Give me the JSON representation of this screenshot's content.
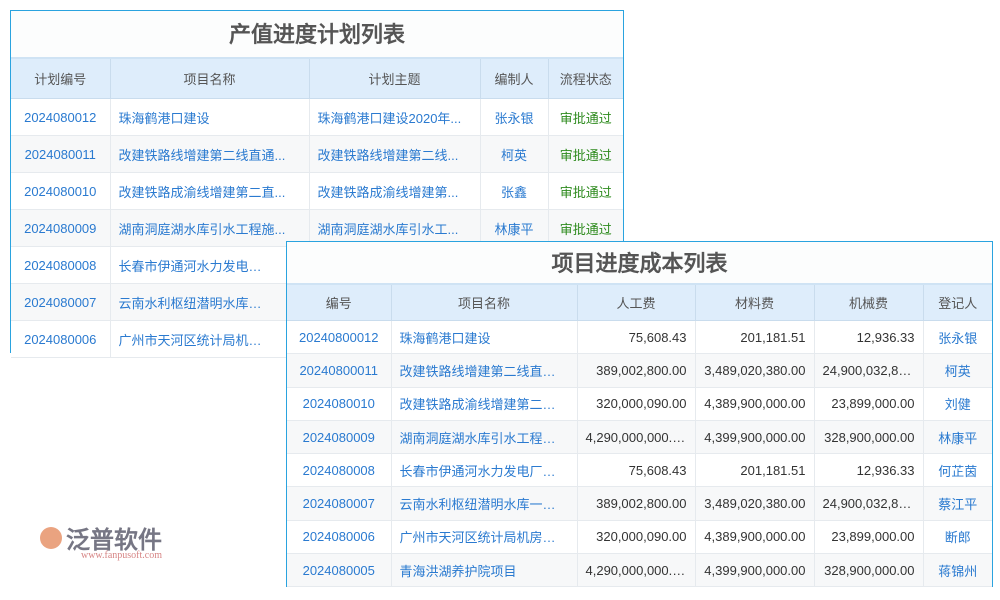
{
  "plan_table": {
    "title": "产值进度计划列表",
    "headers": [
      "计划编号",
      "项目名称",
      "计划主题",
      "编制人",
      "流程状态"
    ],
    "rows": [
      [
        "2024080012",
        "珠海鹤港口建设",
        "珠海鹤港口建设2020年...",
        "张永银",
        "审批通过"
      ],
      [
        "2024080011",
        "改建铁路线增建第二线直通...",
        "改建铁路线增建第二线...",
        "柯英",
        "审批通过"
      ],
      [
        "2024080010",
        "改建铁路成渝线增建第二直...",
        "改建铁路成渝线增建第...",
        "张鑫",
        "审批通过"
      ],
      [
        "2024080009",
        "湖南洞庭湖水库引水工程施...",
        "湖南洞庭湖水库引水工...",
        "林康平",
        "审批通过"
      ],
      [
        "2024080008",
        "长春市伊通河水力发电厂改...",
        "",
        "",
        ""
      ],
      [
        "2024080007",
        "云南水利枢纽潜明水库一期...",
        "",
        "",
        ""
      ],
      [
        "2024080006",
        "广州市天河区统计局机房改...",
        "",
        "",
        ""
      ]
    ]
  },
  "cost_table": {
    "title": "项目进度成本列表",
    "headers": [
      "编号",
      "项目名称",
      "人工费",
      "材料费",
      "机械费",
      "登记人"
    ],
    "rows": [
      [
        "20240800012",
        "珠海鹤港口建设",
        "75,608.43",
        "201,181.51",
        "12,936.33",
        "张永银"
      ],
      [
        "20240800011",
        "改建铁路线增建第二线直通线...",
        "389,002,800.00",
        "3,489,020,380.00",
        "24,900,032,80...",
        "柯英"
      ],
      [
        "2024080010",
        "改建铁路成渝线增建第二直通...",
        "320,000,090.00",
        "4,389,900,000.00",
        "23,899,000.00",
        "刘健"
      ],
      [
        "2024080009",
        "湖南洞庭湖水库引水工程施工...",
        "4,290,000,000.00",
        "4,399,900,000.00",
        "328,900,000.00",
        "林康平"
      ],
      [
        "2024080008",
        "长春市伊通河水力发电厂改建...",
        "75,608.43",
        "201,181.51",
        "12,936.33",
        "何芷茵"
      ],
      [
        "2024080007",
        "云南水利枢纽潜明水库一期工...",
        "389,002,800.00",
        "3,489,020,380.00",
        "24,900,032,80...",
        "蔡江平"
      ],
      [
        "2024080006",
        "广州市天河区统计局机房改造...",
        "320,000,090.00",
        "4,389,900,000.00",
        "23,899,000.00",
        "断郎"
      ],
      [
        "2024080005",
        "青海洪湖养护院项目",
        "4,290,000,000.00",
        "4,399,900,000.00",
        "328,900,000.00",
        "蒋锦州"
      ]
    ]
  },
  "watermark": {
    "text": "泛普软件",
    "url": "www.fanpusoft.com"
  },
  "colors": {
    "border": "#2aa3df",
    "header_bg": "#deedfb",
    "link": "#2a7ad0",
    "approved": "#2e8b1e"
  }
}
